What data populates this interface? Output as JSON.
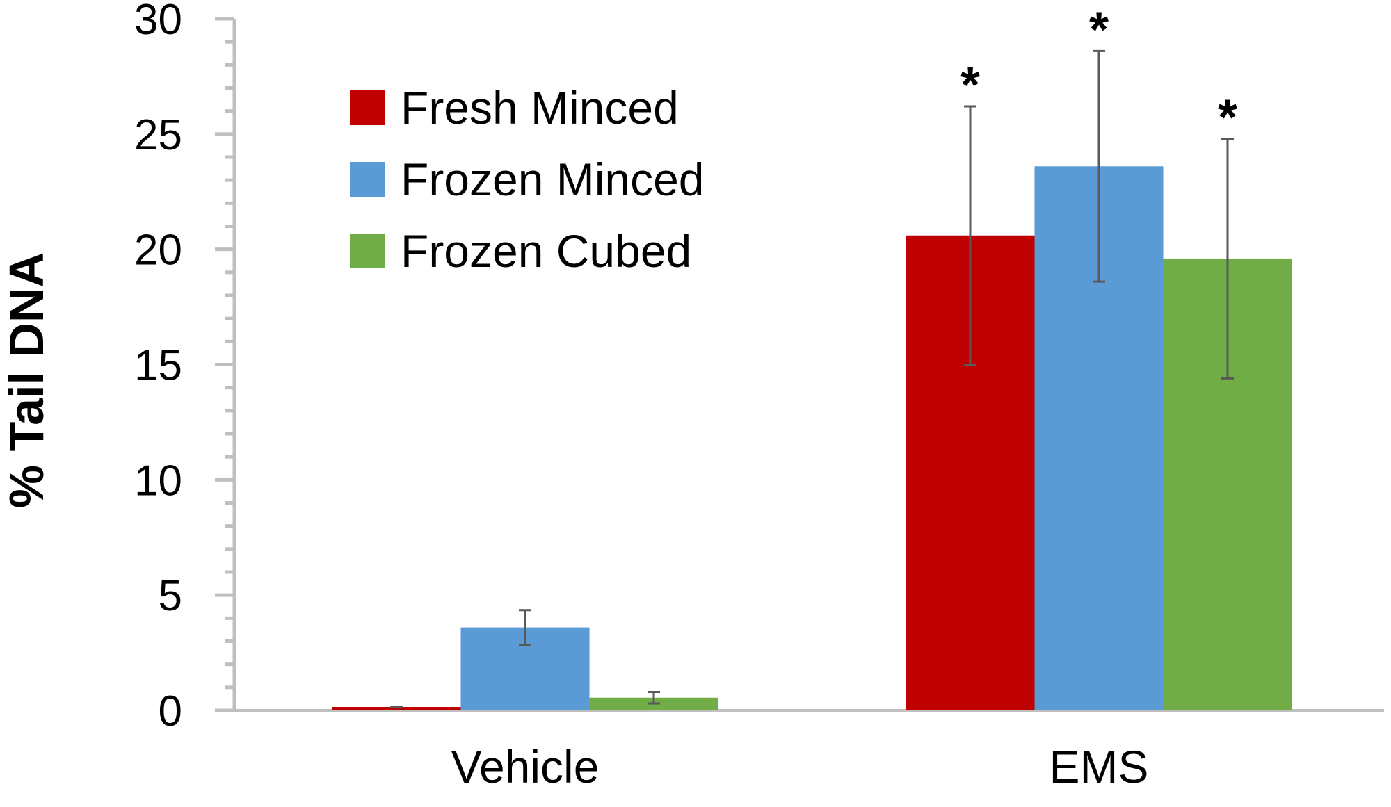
{
  "chart_data": {
    "type": "bar",
    "title": "",
    "xlabel": "",
    "ylabel": "% Tail DNA",
    "ylim": [
      0,
      30
    ],
    "yticks": [
      "0",
      "5",
      "10",
      "15",
      "20",
      "25",
      "30"
    ],
    "categories": [
      "Vehicle",
      "EMS"
    ],
    "series": [
      {
        "name": "Fresh Minced",
        "color": "#c00000",
        "values": [
          0.15,
          20.6
        ],
        "errors": [
          0.0,
          5.6
        ]
      },
      {
        "name": "Frozen Minced",
        "color": "#5b9bd5",
        "values": [
          3.6,
          23.6
        ],
        "errors": [
          0.75,
          5.0
        ]
      },
      {
        "name": "Frozen Cubed",
        "color": "#70ad47",
        "values": [
          0.55,
          19.6
        ],
        "errors": [
          0.25,
          5.2
        ]
      }
    ],
    "annotations": [
      {
        "category": "EMS",
        "series": "Fresh Minced",
        "text": "*"
      },
      {
        "category": "EMS",
        "series": "Frozen Minced",
        "text": "*"
      },
      {
        "category": "EMS",
        "series": "Frozen Cubed",
        "text": "*"
      }
    ],
    "legend_position": "top-left",
    "grid": false
  }
}
